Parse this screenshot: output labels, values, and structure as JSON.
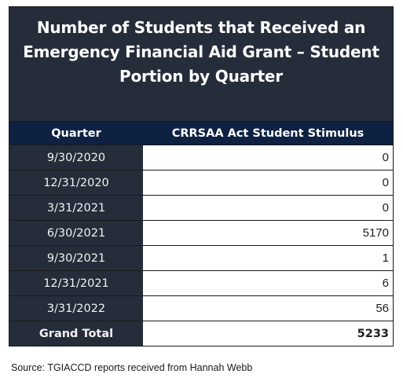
{
  "report": {
    "title_lines": [
      "Number of Students that Received an",
      "Emergency Financial Aid Grant – Student",
      "Portion by Quarter"
    ],
    "columns": [
      "Quarter",
      "CRRSAA Act Student Stimulus"
    ],
    "rows": [
      {
        "quarter": "9/30/2020",
        "value": "0"
      },
      {
        "quarter": "12/31/2020",
        "value": "0"
      },
      {
        "quarter": "3/31/2021",
        "value": "0"
      },
      {
        "quarter": "6/30/2021",
        "value": "5170"
      },
      {
        "quarter": "9/30/2021",
        "value": "1"
      },
      {
        "quarter": "12/31/2021",
        "value": "6"
      },
      {
        "quarter": "3/31/2022",
        "value": "56"
      }
    ],
    "total": {
      "label": "Grand Total",
      "value": "5233"
    }
  },
  "source": "Source: TGIACCD reports received from Hannah Webb",
  "colors": {
    "title_background": "#252d3a",
    "header_background": "#0e2142",
    "quarter_background": "#252d3a",
    "value_background": "#ffffff"
  }
}
